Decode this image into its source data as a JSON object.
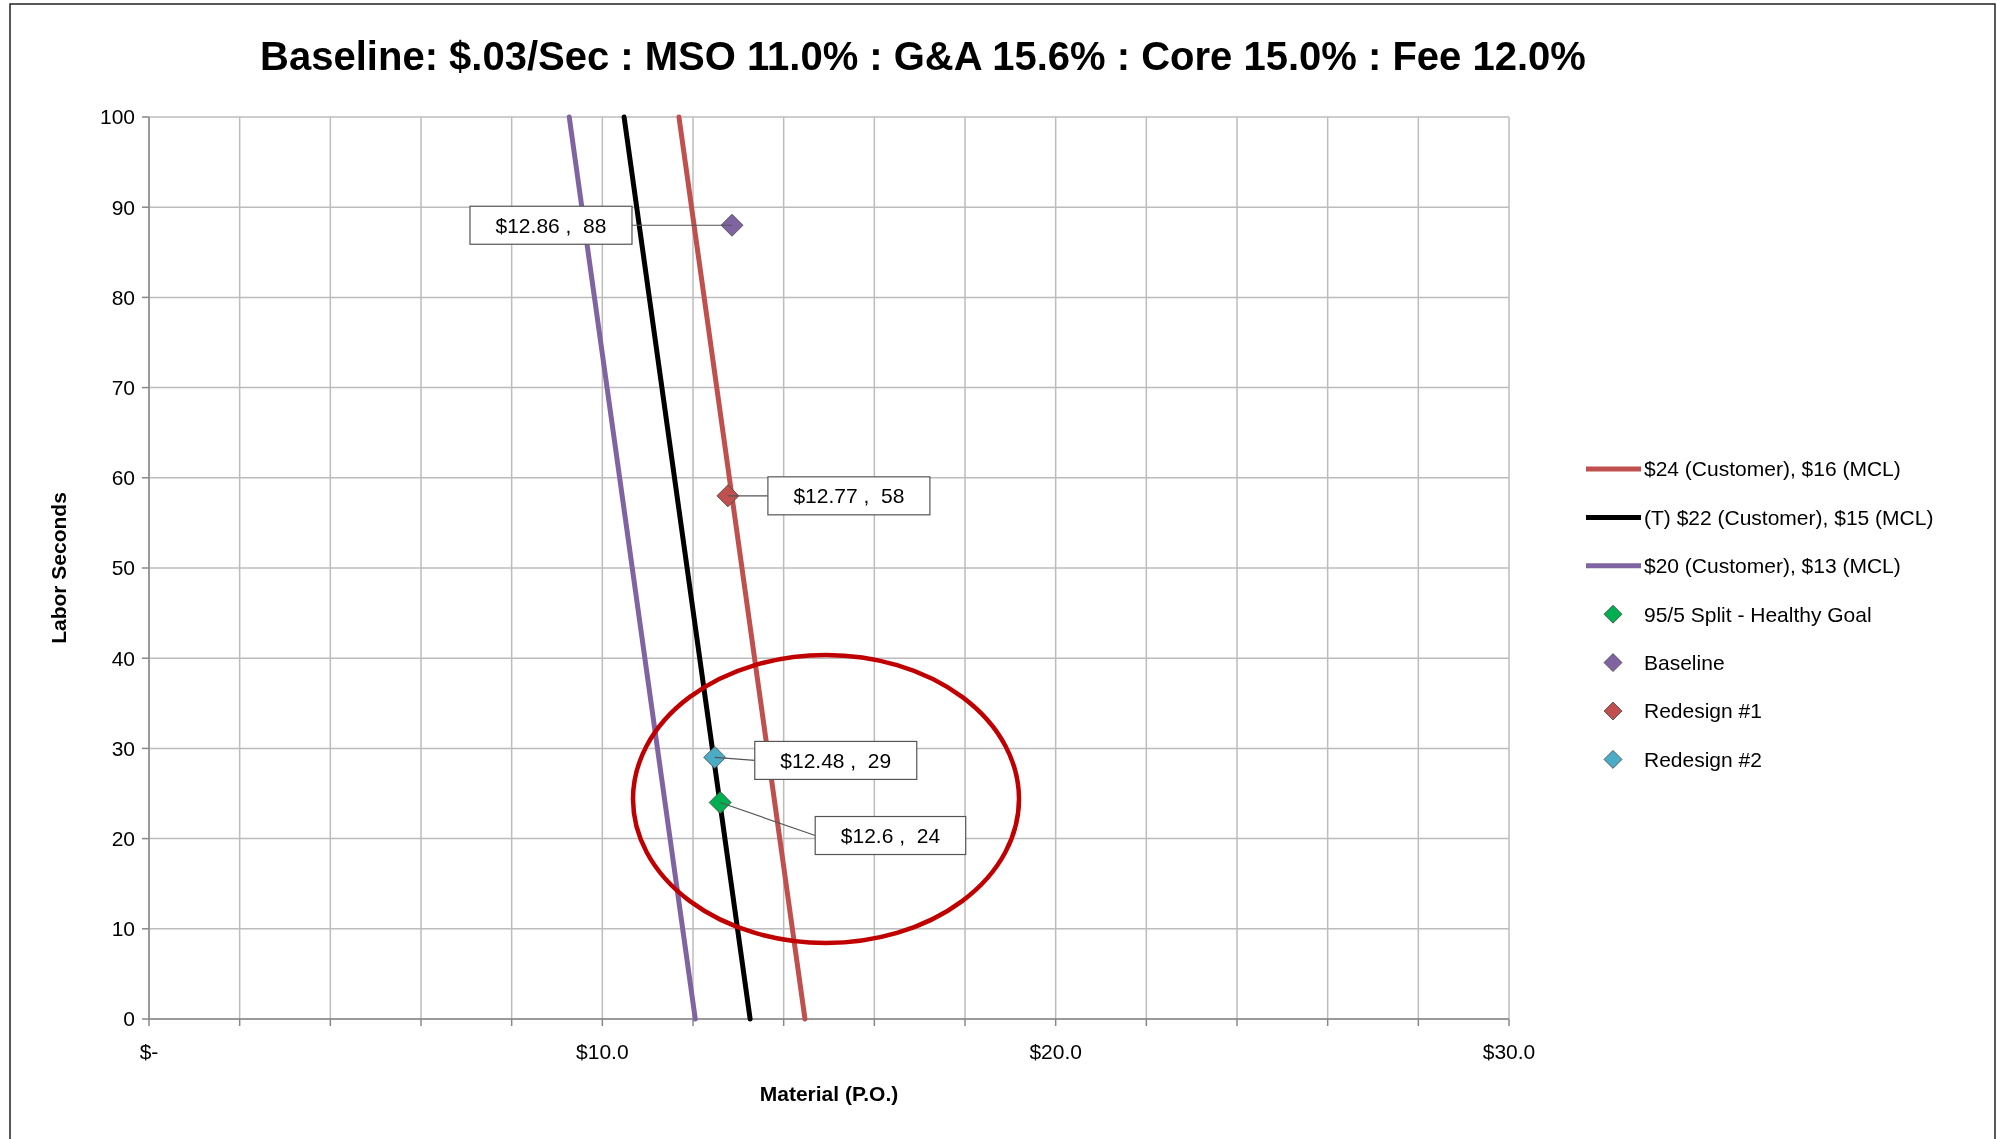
{
  "chart_data": {
    "type": "line",
    "title": "Baseline: $.03/Sec : MSO 11.0% : G&A 15.6% : Core 15.0% : Fee 12.0%",
    "xlabel": "Material (P.O.)",
    "ylabel": "Labor Seconds",
    "xlim": [
      0,
      30
    ],
    "ylim": [
      0,
      100
    ],
    "xticks": [
      {
        "value": 0,
        "label": "$-"
      },
      {
        "value": 2,
        "label": null
      },
      {
        "value": 4,
        "label": null
      },
      {
        "value": 6,
        "label": null
      },
      {
        "value": 8,
        "label": null
      },
      {
        "value": 10,
        "label": "$10.0"
      },
      {
        "value": 12,
        "label": null
      },
      {
        "value": 14,
        "label": null
      },
      {
        "value": 16,
        "label": null
      },
      {
        "value": 18,
        "label": null
      },
      {
        "value": 20,
        "label": "$20.0"
      },
      {
        "value": 22,
        "label": null
      },
      {
        "value": 24,
        "label": null
      },
      {
        "value": 26,
        "label": null
      },
      {
        "value": 28,
        "label": null
      },
      {
        "value": 30,
        "label": "$30.0"
      }
    ],
    "yticks": [
      0,
      10,
      20,
      30,
      40,
      50,
      60,
      70,
      80,
      90,
      100
    ],
    "grid": true,
    "legend": "right",
    "line_style": "solid",
    "series": [
      {
        "name": "$24 (Customer), $16 (MCL)",
        "color": "#c0504d",
        "x": [
          11.69,
          14.47
        ],
        "values": [
          100,
          0
        ],
        "marker": "none"
      },
      {
        "name": "(T) $22 (Customer), $15 (MCL)",
        "color": "#000000",
        "x": [
          10.48,
          13.26
        ],
        "values": [
          100,
          0
        ],
        "marker": "none"
      },
      {
        "name": "$20 (Customer), $13 (MCL)",
        "color": "#8064a2",
        "x": [
          9.27,
          12.05
        ],
        "values": [
          100,
          0
        ],
        "marker": "none"
      },
      {
        "name": "95/5 Split - Healthy Goal",
        "type": "scatter",
        "color": "#00b050",
        "x": [
          12.6
        ],
        "values": [
          24
        ],
        "marker": "diamond"
      },
      {
        "name": "Baseline",
        "type": "scatter",
        "color": "#8064a2",
        "x": [
          12.86
        ],
        "values": [
          88
        ],
        "marker": "diamond"
      },
      {
        "name": "Redesign #1",
        "type": "scatter",
        "color": "#c0504d",
        "x": [
          12.77
        ],
        "values": [
          58
        ],
        "marker": "diamond"
      },
      {
        "name": "Redesign #2",
        "type": "scatter",
        "color": "#4bacc6",
        "x": [
          12.48
        ],
        "values": [
          29
        ],
        "marker": "diamond"
      }
    ],
    "annotations": [
      {
        "text": "$12.86 ,  88",
        "x": 12.86,
        "y": 88
      },
      {
        "text": "$12.77 ,  58",
        "x": 12.77,
        "y": 58
      },
      {
        "text": "$12.48 ,  29",
        "x": 12.48,
        "y": 29
      },
      {
        "text": "$12.6 ,  24",
        "x": 12.6,
        "y": 24
      }
    ]
  }
}
